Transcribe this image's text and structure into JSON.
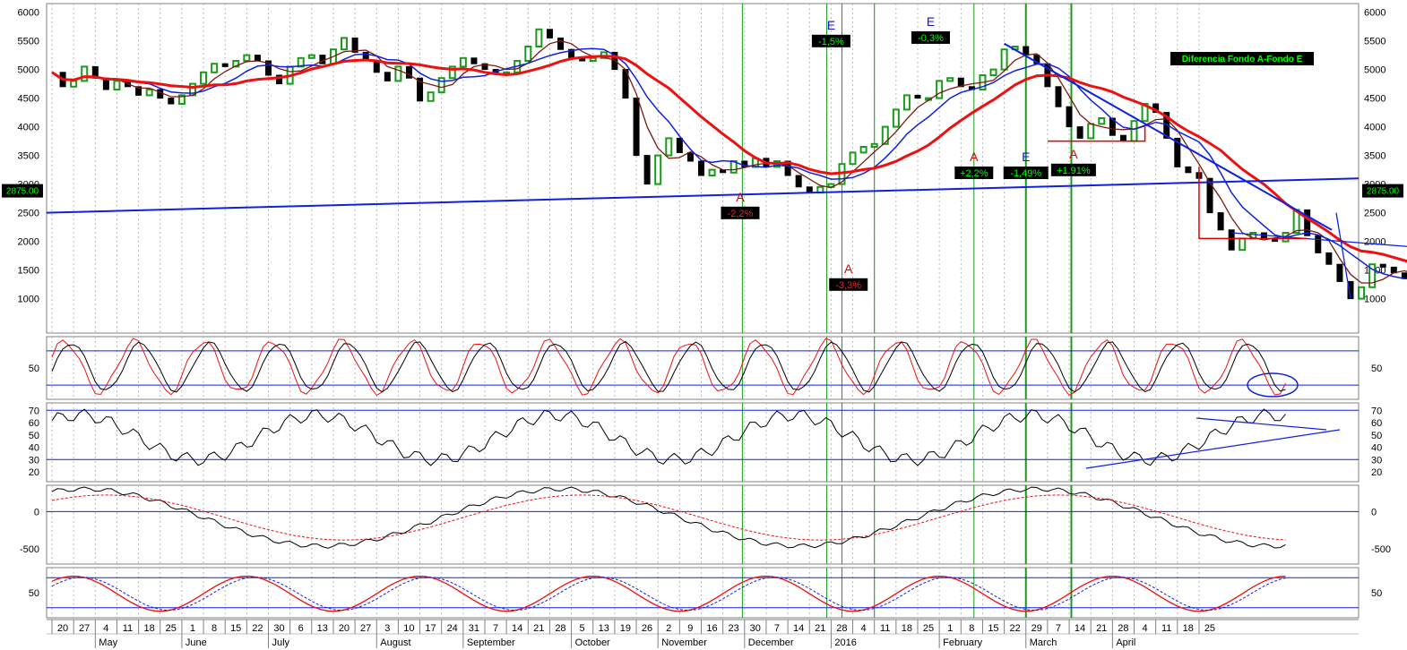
{
  "chart_data": {
    "type": "line",
    "price_panel": {
      "y_ticks": [
        6000,
        5500,
        5000,
        4500,
        4000,
        3500,
        3000,
        2500,
        2000,
        1500,
        1000
      ],
      "y_range": [
        400,
        6150
      ],
      "last_price_label": "2875.00",
      "annotation_box": "Diferencia Fondo A-Fondo E",
      "annotations": [
        {
          "letter": "E",
          "value": "-1,5%",
          "letter_color": "#1010e0",
          "value_bg": "#000000",
          "value_color": "#00ff00",
          "week": 36.0,
          "price": 5700
        },
        {
          "letter": "E",
          "value": "-0,3%",
          "letter_color": "#1010e0",
          "value_bg": "#000000",
          "value_color": "#00ff00",
          "week": 40.6,
          "price": 5760
        },
        {
          "letter": "A",
          "value": "-2,2%",
          "letter_color": "#e00000",
          "value_bg": "#000000",
          "value_color": "#ff2020",
          "week": 31.8,
          "price": 2700
        },
        {
          "letter": "A",
          "value": "-3,3%",
          "letter_color": "#e00000",
          "value_bg": "#000000",
          "value_color": "#ff2020",
          "week": 36.8,
          "price": 1450
        },
        {
          "letter": "A",
          "value": "+2,2%",
          "letter_color": "#e00000",
          "value_bg": "#000000",
          "value_color": "#00ff00",
          "week": 42.6,
          "price": 3400
        },
        {
          "letter": "E",
          "value": "-1,49%",
          "letter_color": "#1010e0",
          "value_bg": "#000000",
          "value_color": "#00ff00",
          "week": 45.0,
          "price": 3400
        },
        {
          "letter": "A",
          "value": "+1.91%",
          "letter_color": "#e00000",
          "value_bg": "#000000",
          "value_color": "#00ff00",
          "week": 47.2,
          "price": 3450
        }
      ],
      "price_series": [
        [
          0,
          4950
        ],
        [
          0.5,
          4700
        ],
        [
          1,
          4800
        ],
        [
          1.5,
          5050
        ],
        [
          2,
          4850
        ],
        [
          2.5,
          4650
        ],
        [
          3,
          4800
        ],
        [
          3.5,
          4700
        ],
        [
          4,
          4550
        ],
        [
          4.5,
          4650
        ],
        [
          5,
          4500
        ],
        [
          5.5,
          4400
        ],
        [
          6,
          4550
        ],
        [
          6.5,
          4750
        ],
        [
          7,
          4950
        ],
        [
          7.5,
          5100
        ],
        [
          8,
          5050
        ],
        [
          8.5,
          5150
        ],
        [
          9,
          5250
        ],
        [
          9.5,
          5150
        ],
        [
          10,
          4900
        ],
        [
          10.5,
          4750
        ],
        [
          11,
          5050
        ],
        [
          11.5,
          5200
        ],
        [
          12,
          5250
        ],
        [
          12.5,
          5100
        ],
        [
          13,
          5350
        ],
        [
          13.5,
          5550
        ],
        [
          14,
          5300
        ],
        [
          14.5,
          5150
        ],
        [
          15,
          4950
        ],
        [
          15.5,
          4800
        ],
        [
          16,
          5050
        ],
        [
          16.5,
          4850
        ],
        [
          17,
          4450
        ],
        [
          17.5,
          4600
        ],
        [
          18,
          4850
        ],
        [
          18.5,
          5050
        ],
        [
          19,
          5200
        ],
        [
          19.5,
          5100
        ],
        [
          20,
          5000
        ],
        [
          20.5,
          4950
        ],
        [
          21,
          4950
        ],
        [
          21.5,
          5150
        ],
        [
          22,
          5400
        ],
        [
          22.5,
          5700
        ],
        [
          23,
          5550
        ],
        [
          23.5,
          5350
        ],
        [
          24,
          5200
        ],
        [
          24.5,
          5150
        ],
        [
          25,
          5200
        ],
        [
          25.5,
          5300
        ],
        [
          26,
          5000
        ],
        [
          26.5,
          4500
        ],
        [
          27,
          3500
        ],
        [
          27.5,
          3000
        ],
        [
          28,
          3500
        ],
        [
          28.5,
          3800
        ],
        [
          29,
          3550
        ],
        [
          29.5,
          3400
        ],
        [
          30,
          3150
        ],
        [
          30.5,
          3250
        ],
        [
          31,
          3200
        ],
        [
          31.5,
          3400
        ],
        [
          32,
          3300
        ],
        [
          32.5,
          3450
        ],
        [
          33,
          3300
        ],
        [
          33.5,
          3400
        ],
        [
          34,
          3150
        ],
        [
          34.5,
          2950
        ],
        [
          35,
          2850
        ],
        [
          35.5,
          2950
        ],
        [
          36,
          3000
        ],
        [
          36.5,
          3350
        ],
        [
          37,
          3550
        ],
        [
          37.5,
          3650
        ],
        [
          38,
          3700
        ],
        [
          38.5,
          4000
        ],
        [
          39,
          4300
        ],
        [
          39.5,
          4550
        ],
        [
          40,
          4500
        ],
        [
          40.5,
          4500
        ],
        [
          41,
          4800
        ],
        [
          41.5,
          4850
        ],
        [
          42,
          4700
        ],
        [
          42.5,
          4650
        ],
        [
          43,
          4900
        ],
        [
          43.5,
          5000
        ],
        [
          44,
          5350
        ],
        [
          44.5,
          5400
        ],
        [
          45,
          5250
        ],
        [
          45.5,
          5100
        ],
        [
          46,
          4700
        ],
        [
          46.5,
          4350
        ],
        [
          47,
          4000
        ],
        [
          47.5,
          3800
        ],
        [
          48,
          4050
        ],
        [
          48.5,
          4150
        ],
        [
          49,
          3850
        ],
        [
          49.5,
          3750
        ],
        [
          50,
          4100
        ],
        [
          50.5,
          4400
        ],
        [
          51,
          4250
        ],
        [
          51.5,
          3800
        ],
        [
          52,
          3300
        ],
        [
          52.5,
          3200
        ],
        [
          53,
          3100
        ],
        [
          53.5,
          2500
        ],
        [
          54,
          2200
        ],
        [
          54.5,
          1850
        ],
        [
          55,
          2050
        ],
        [
          55.5,
          2150
        ],
        [
          56,
          2050
        ],
        [
          56.5,
          2000
        ],
        [
          57,
          2150
        ],
        [
          57.5,
          2550
        ],
        [
          58,
          2100
        ],
        [
          58.5,
          1800
        ],
        [
          59,
          1600
        ],
        [
          59.5,
          1300
        ],
        [
          60,
          1000
        ],
        [
          60.5,
          1200
        ],
        [
          61,
          1600
        ],
        [
          61.5,
          1550
        ],
        [
          62,
          1450
        ],
        [
          62.5,
          1350
        ],
        [
          63,
          1300
        ],
        [
          63.5,
          1650
        ],
        [
          64,
          1900
        ],
        [
          64.5,
          2150
        ],
        [
          65,
          2050
        ],
        [
          65.5,
          2200
        ],
        [
          66,
          2500
        ],
        [
          66.5,
          2600
        ],
        [
          67,
          2550
        ],
        [
          67.5,
          2700
        ],
        [
          68,
          2550
        ],
        [
          68.5,
          2450
        ],
        [
          69,
          2600
        ],
        [
          69.5,
          2500
        ],
        [
          70,
          2400
        ],
        [
          70.5,
          2250
        ],
        [
          71,
          2500
        ],
        [
          71.5,
          2650
        ],
        [
          72,
          2900
        ]
      ],
      "fast_ma_color": "#7a1a10",
      "mid_ma_color": "#1020e0",
      "slow_ma_color": "#ee1010"
    },
    "stochastic_panel": {
      "y_ticks": [
        50
      ],
      "y_range": [
        -5,
        105
      ],
      "levels": [
        80,
        20
      ]
    },
    "rsi_panel": {
      "y_ticks": [
        70,
        60,
        50,
        40,
        30,
        20
      ],
      "y_range": [
        12,
        76
      ],
      "levels": [
        70,
        30
      ]
    },
    "macd_panel": {
      "y_ticks": [
        0,
        -500
      ],
      "y_range": [
        -700,
        350
      ],
      "levels": [
        0
      ]
    },
    "slow_stoch_panel": {
      "y_ticks": [
        50
      ],
      "y_range": [
        0,
        100
      ],
      "levels": [
        80,
        20
      ]
    },
    "x_axis": {
      "week_labels": [
        "20",
        "27",
        "4",
        "11",
        "18",
        "25",
        "1",
        "8",
        "15",
        "22",
        "30",
        "6",
        "13",
        "20",
        "27",
        "3",
        "10",
        "17",
        "24",
        "31",
        "7",
        "14",
        "21",
        "28",
        "5",
        "13",
        "19",
        "26",
        "2",
        "9",
        "16",
        "23",
        "30",
        "7",
        "14",
        "21",
        "28",
        "4",
        "11",
        "18",
        "25",
        "1",
        "8",
        "15",
        "22",
        "29",
        "7",
        "14",
        "21",
        "28",
        "4",
        "11",
        "18",
        "25"
      ],
      "month_labels": [
        {
          "label": "May",
          "week": 2
        },
        {
          "label": "June",
          "week": 6
        },
        {
          "label": "July",
          "week": 10
        },
        {
          "label": "August",
          "week": 15
        },
        {
          "label": "September",
          "week": 19
        },
        {
          "label": "October",
          "week": 24
        },
        {
          "label": "November",
          "week": 28
        },
        {
          "label": "December",
          "week": 32
        },
        {
          "label": "2016",
          "week": 36
        },
        {
          "label": "February",
          "week": 41
        },
        {
          "label": "March",
          "week": 45
        },
        {
          "label": "April",
          "week": 49
        }
      ],
      "vertical_markers_week": [
        31.9,
        35.8,
        36.5,
        38.0,
        42.6,
        45.0,
        47.1
      ]
    }
  }
}
